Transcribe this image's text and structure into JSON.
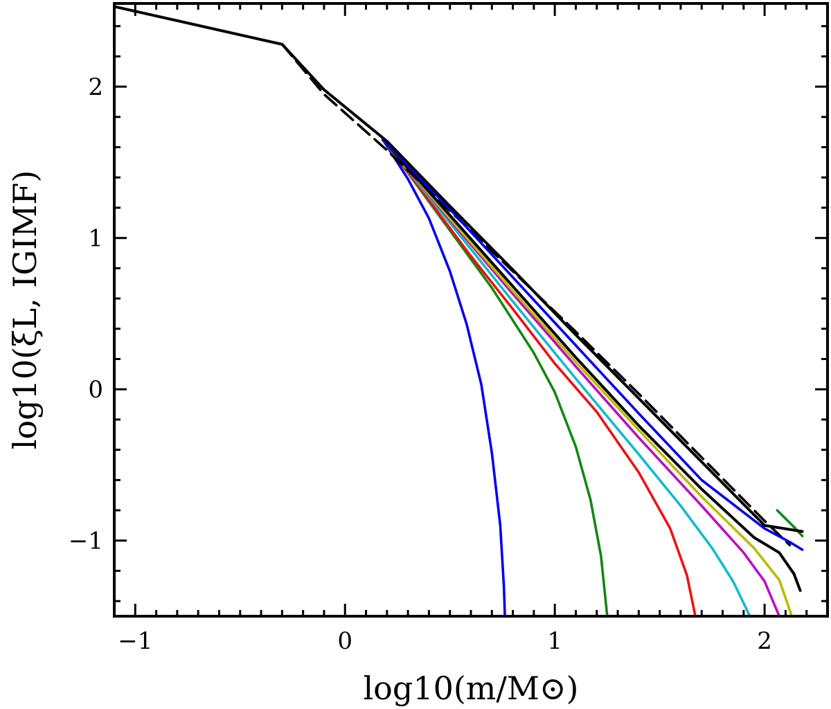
{
  "chart_data": {
    "type": "line",
    "title": "",
    "xlabel": "log10(m/M⊙)",
    "ylabel": "log10(ξL, IGIMF)",
    "xlim": [
      -1.1,
      2.3
    ],
    "ylim": [
      -1.5,
      2.55
    ],
    "xticks": [
      -1,
      0,
      1,
      2
    ],
    "yticks": [
      -1,
      0,
      1,
      2
    ],
    "xtick_labels": [
      "−1",
      "0",
      "1",
      "2"
    ],
    "ytick_labels": [
      "−1",
      "0",
      "1",
      "2"
    ],
    "grid": false,
    "legend": "none",
    "series": [
      {
        "color": "#0000ee",
        "dash": "",
        "x": [
          0.18,
          0.3,
          0.4,
          0.5,
          0.58,
          0.65,
          0.7,
          0.74,
          0.757,
          0.762
        ],
        "y": [
          1.65,
          1.39,
          1.13,
          0.78,
          0.43,
          0.03,
          -0.42,
          -0.9,
          -1.3,
          -1.5
        ]
      },
      {
        "color": "#118811",
        "dash": "",
        "x": [
          0.18,
          0.3,
          0.5,
          0.7,
          0.9,
          1.0,
          1.1,
          1.17,
          1.22,
          1.25
        ],
        "y": [
          1.65,
          1.43,
          1.05,
          0.67,
          0.24,
          -0.02,
          -0.38,
          -0.73,
          -1.1,
          -1.5
        ]
      },
      {
        "color": "#ee1111",
        "dash": "",
        "x": [
          0.18,
          0.4,
          0.6,
          0.8,
          1.0,
          1.2,
          1.4,
          1.55,
          1.63,
          1.67
        ],
        "y": [
          1.65,
          1.25,
          0.88,
          0.53,
          0.17,
          -0.15,
          -0.55,
          -0.92,
          -1.23,
          -1.5
        ]
      },
      {
        "color": "#11bbcc",
        "dash": "",
        "x": [
          0.18,
          0.5,
          0.8,
          1.1,
          1.4,
          1.6,
          1.75,
          1.85,
          1.93
        ],
        "y": [
          1.65,
          1.1,
          0.58,
          0.07,
          -0.43,
          -0.77,
          -1.05,
          -1.27,
          -1.5
        ]
      },
      {
        "color": "#bb11bb",
        "dash": "",
        "x": [
          0.18,
          0.5,
          0.8,
          1.1,
          1.4,
          1.7,
          1.9,
          2.0,
          2.07
        ],
        "y": [
          1.65,
          1.12,
          0.63,
          0.15,
          -0.32,
          -0.77,
          -1.08,
          -1.27,
          -1.5
        ]
      },
      {
        "color": "#bbbb00",
        "dash": "",
        "x": [
          0.18,
          0.5,
          0.8,
          1.1,
          1.4,
          1.7,
          1.95,
          2.07,
          2.13
        ],
        "y": [
          1.65,
          1.13,
          0.65,
          0.18,
          -0.27,
          -0.71,
          -1.05,
          -1.26,
          -1.5
        ]
      },
      {
        "color": "#000000",
        "dash": "",
        "x": [
          0.18,
          0.5,
          0.8,
          1.1,
          1.4,
          1.7,
          1.95,
          2.07,
          2.14,
          2.17
        ],
        "y": [
          1.65,
          1.15,
          0.68,
          0.21,
          -0.24,
          -0.66,
          -0.98,
          -1.08,
          -1.22,
          -1.33
        ]
      },
      {
        "color": "#000000",
        "dash": "22 10",
        "x": [
          -0.3,
          -0.1,
          0.2,
          0.5,
          0.8,
          1.1,
          1.4,
          1.7,
          2.0,
          2.12
        ],
        "y": [
          2.28,
          1.95,
          1.58,
          1.18,
          0.78,
          0.38,
          -0.03,
          -0.45,
          -0.87,
          -1.03
        ]
      },
      {
        "color": "#0000ee",
        "dash": "",
        "x": [
          0.18,
          0.5,
          0.8,
          1.1,
          1.4,
          1.7,
          2.0,
          2.12,
          2.18
        ],
        "y": [
          1.65,
          1.19,
          0.74,
          0.29,
          -0.16,
          -0.6,
          -0.92,
          -1.01,
          -1.06
        ]
      },
      {
        "color": "#118811",
        "dash": "",
        "x": [
          2.06,
          2.14,
          2.18
        ],
        "y": [
          -0.8,
          -0.91,
          -0.97
        ]
      },
      {
        "color": "#000000",
        "dash": "",
        "x": [
          -1.1,
          -0.3,
          -0.1,
          0.2,
          0.5,
          0.8,
          1.1,
          1.4,
          1.7,
          2.0,
          2.18
        ],
        "y": [
          2.53,
          2.28,
          1.98,
          1.64,
          1.21,
          0.79,
          0.36,
          -0.06,
          -0.48,
          -0.9,
          -0.94
        ]
      }
    ]
  }
}
